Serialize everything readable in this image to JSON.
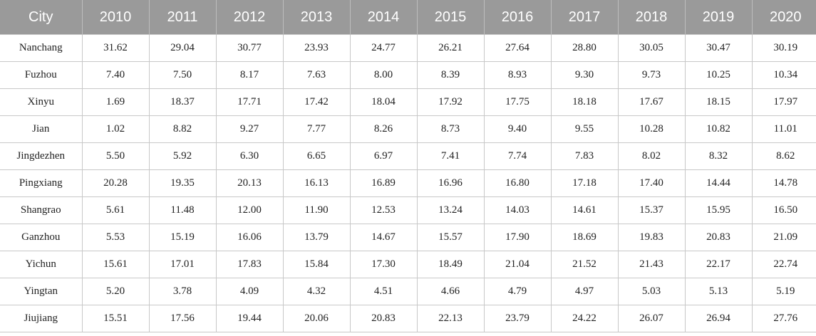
{
  "table": {
    "headers": [
      "City",
      "2010",
      "2011",
      "2012",
      "2013",
      "2014",
      "2015",
      "2016",
      "2017",
      "2018",
      "2019",
      "2020"
    ],
    "rows": [
      [
        "Nanchang",
        "31.62",
        "29.04",
        "30.77",
        "23.93",
        "24.77",
        "26.21",
        "27.64",
        "28.80",
        "30.05",
        "30.47",
        "30.19"
      ],
      [
        "Fuzhou",
        "7.40",
        "7.50",
        "8.17",
        "7.63",
        "8.00",
        "8.39",
        "8.93",
        "9.30",
        "9.73",
        "10.25",
        "10.34"
      ],
      [
        "Xinyu",
        "1.69",
        "18.37",
        "17.71",
        "17.42",
        "18.04",
        "17.92",
        "17.75",
        "18.18",
        "17.67",
        "18.15",
        "17.97"
      ],
      [
        "Jian",
        "1.02",
        "8.82",
        "9.27",
        "7.77",
        "8.26",
        "8.73",
        "9.40",
        "9.55",
        "10.28",
        "10.82",
        "11.01"
      ],
      [
        "Jingdezhen",
        "5.50",
        "5.92",
        "6.30",
        "6.65",
        "6.97",
        "7.41",
        "7.74",
        "7.83",
        "8.02",
        "8.32",
        "8.62"
      ],
      [
        "Pingxiang",
        "20.28",
        "19.35",
        "20.13",
        "16.13",
        "16.89",
        "16.96",
        "16.80",
        "17.18",
        "17.40",
        "14.44",
        "14.78"
      ],
      [
        "Shangrao",
        "5.61",
        "11.48",
        "12.00",
        "11.90",
        "12.53",
        "13.24",
        "14.03",
        "14.61",
        "15.37",
        "15.95",
        "16.50"
      ],
      [
        "Ganzhou",
        "5.53",
        "15.19",
        "16.06",
        "13.79",
        "14.67",
        "15.57",
        "17.90",
        "18.69",
        "19.83",
        "20.83",
        "21.09"
      ],
      [
        "Yichun",
        "15.61",
        "17.01",
        "17.83",
        "15.84",
        "17.30",
        "18.49",
        "21.04",
        "21.52",
        "21.43",
        "22.17",
        "22.74"
      ],
      [
        "Yingtan",
        "5.20",
        "3.78",
        "4.09",
        "4.32",
        "4.51",
        "4.66",
        "4.79",
        "4.97",
        "5.03",
        "5.13",
        "5.19"
      ],
      [
        "Jiujiang",
        "15.51",
        "17.56",
        "19.44",
        "20.06",
        "20.83",
        "22.13",
        "23.79",
        "24.22",
        "26.07",
        "26.94",
        "27.76"
      ]
    ]
  }
}
